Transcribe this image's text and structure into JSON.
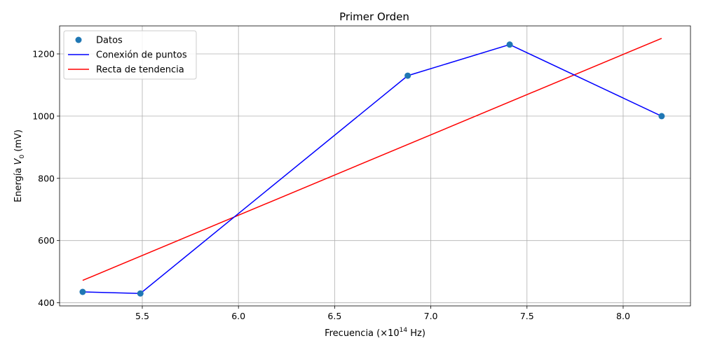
{
  "chart_data": {
    "type": "line",
    "title": "Primer Orden",
    "xlabel": {
      "prefix": "Frecuencia (×10",
      "sup": "14",
      "suffix": " Hz)"
    },
    "ylabel": {
      "prefix": "Energía ",
      "var": "V",
      "sub": "0",
      "suffix": " (mV)"
    },
    "xlim": [
      5.07,
      8.35
    ],
    "ylim": [
      390,
      1290
    ],
    "xticks": [
      5.5,
      6.0,
      6.5,
      7.0,
      7.5,
      8.0
    ],
    "xtick_labels": [
      "5.5",
      "6.0",
      "6.5",
      "7.0",
      "7.5",
      "8.0"
    ],
    "yticks": [
      400,
      600,
      800,
      1000,
      1200
    ],
    "ytick_labels": [
      "400",
      "600",
      "800",
      "1000",
      "1200"
    ],
    "grid": true,
    "legend_position": "top-left",
    "series": [
      {
        "name": "Datos",
        "kind": "scatter",
        "color": "#1f77b4",
        "x": [
          5.19,
          5.49,
          6.88,
          7.41,
          8.2
        ],
        "y": [
          435,
          430,
          1130,
          1230,
          1000
        ]
      },
      {
        "name": "Conexión de puntos",
        "kind": "line",
        "color": "#0000ff",
        "x": [
          5.19,
          5.49,
          6.88,
          7.41,
          8.2
        ],
        "y": [
          435,
          430,
          1130,
          1230,
          1000
        ]
      },
      {
        "name": "Recta de tendencia",
        "kind": "line",
        "color": "#ff0000",
        "x": [
          5.19,
          8.2
        ],
        "y": [
          472,
          1250
        ]
      }
    ]
  }
}
